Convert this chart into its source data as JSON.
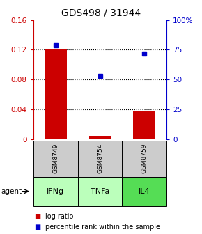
{
  "title": "GDS498 / 31944",
  "samples": [
    "GSM8749",
    "GSM8754",
    "GSM8759"
  ],
  "agents": [
    "IFNg",
    "TNFa",
    "IL4"
  ],
  "log_ratios": [
    0.121,
    0.005,
    0.037
  ],
  "percentile_ranks": [
    0.79,
    0.53,
    0.72
  ],
  "ylim_left": [
    0,
    0.16
  ],
  "ylim_right": [
    0,
    1.0
  ],
  "yticks_left": [
    0,
    0.04,
    0.08,
    0.12,
    0.16
  ],
  "ytick_labels_left": [
    "0",
    "0.04",
    "0.08",
    "0.12",
    "0.16"
  ],
  "yticks_right": [
    0,
    0.25,
    0.5,
    0.75,
    1.0
  ],
  "ytick_labels_right": [
    "0",
    "25",
    "50",
    "75",
    "100%"
  ],
  "bar_color": "#cc0000",
  "marker_color": "#0000cc",
  "bar_width": 0.5,
  "sample_box_color": "#cccccc",
  "agent_colors": [
    "#bbffbb",
    "#bbffbb",
    "#55dd55"
  ],
  "background_color": "#ffffff",
  "title_fontsize": 10,
  "tick_fontsize": 7.5,
  "legend_fontsize": 7,
  "sample_fontsize": 6.5,
  "agent_fontsize": 8
}
